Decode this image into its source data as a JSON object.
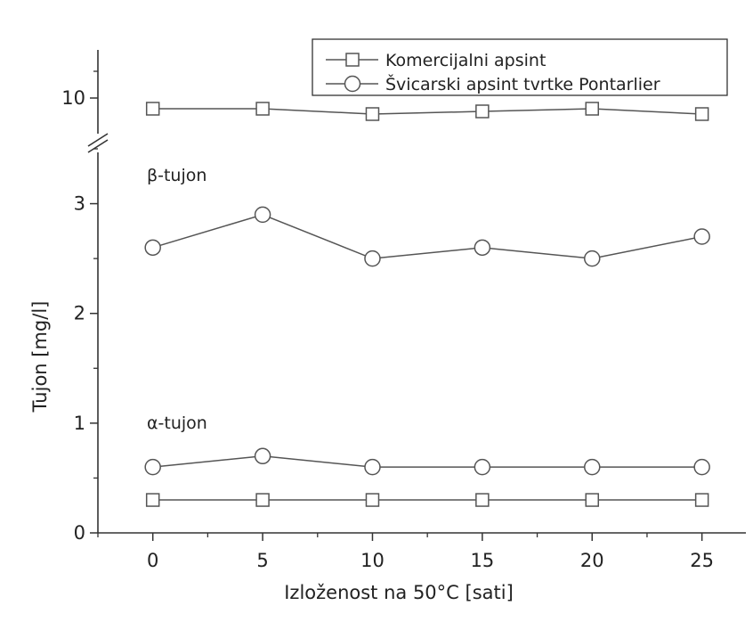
{
  "chart_data": {
    "type": "line",
    "title": "",
    "xlabel": "Izloženost na 50°C [sati]",
    "ylabel": "Tujon [mg/l]",
    "x": [
      0,
      5,
      10,
      15,
      20,
      25
    ],
    "x_ticks": [
      "0",
      "5",
      "10",
      "15",
      "20",
      "25"
    ],
    "y_ticks_lower": [
      "0",
      "1",
      "2",
      "3"
    ],
    "y_ticks_upper": [
      "10"
    ],
    "xlim": [
      -2.5,
      27
    ],
    "ylim": [
      0,
      3.5
    ],
    "ylim_upper": [
      9.3,
      10.9
    ],
    "axis_break": "between 3.5 and 9.3",
    "grid": false,
    "legend_position": "top-right",
    "colors": {
      "line": "#555555",
      "axis": "#333333"
    },
    "annotations": [
      {
        "text": "β-tujon",
        "x": -0.3,
        "y": 3.2
      },
      {
        "text": "α-tujon",
        "x": -0.3,
        "y": 1.0
      }
    ],
    "series": [
      {
        "name": "Komercijalni apsint",
        "compound": "β-tujon",
        "marker": "square",
        "panel": "upper",
        "values": [
          9.8,
          9.8,
          9.7,
          9.75,
          9.8,
          9.7
        ]
      },
      {
        "name": "Švicarski apsint tvrtke Pontarlier",
        "compound": "β-tujon",
        "marker": "circle",
        "panel": "lower",
        "values": [
          2.6,
          2.9,
          2.5,
          2.6,
          2.5,
          2.7
        ]
      },
      {
        "name": "Komercijalni apsint",
        "compound": "α-tujon",
        "marker": "square",
        "panel": "lower",
        "values": [
          0.3,
          0.3,
          0.3,
          0.3,
          0.3,
          0.3
        ]
      },
      {
        "name": "Švicarski apsint tvrtke Pontarlier",
        "compound": "α-tujon",
        "marker": "circle",
        "panel": "lower",
        "values": [
          0.6,
          0.7,
          0.6,
          0.6,
          0.6,
          0.6
        ]
      }
    ],
    "legend": [
      {
        "label": "Komercijalni apsint",
        "marker": "square"
      },
      {
        "label": "Švicarski apsint tvrtke Pontarlier",
        "marker": "circle"
      }
    ]
  }
}
